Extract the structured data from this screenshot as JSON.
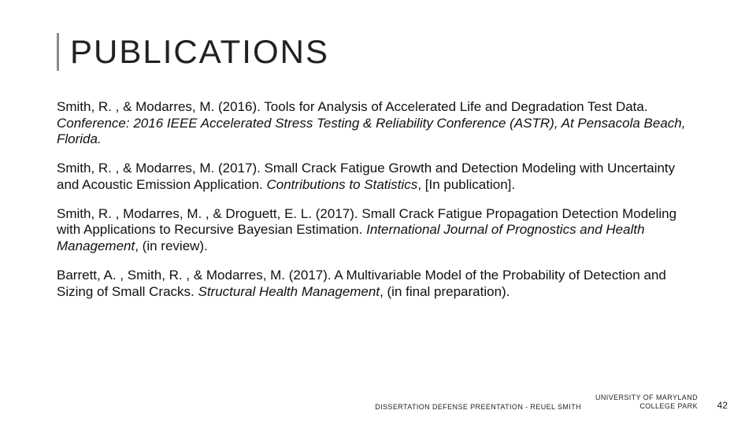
{
  "title": "PUBLICATIONS",
  "title_fontsize": 42,
  "title_letter_spacing": 2,
  "accent_bar_color": "#8b8b8b",
  "background_color": "#ffffff",
  "body_fontsize": 17,
  "body_line_height": 1.22,
  "text_color": "#111111",
  "footer_fontsize": 9,
  "page_number_fontsize": 12,
  "publications": [
    {
      "authors": "Smith, R. , & Modarres, M. (2016).",
      "body": "Tools for Analysis of Accelerated Life and Degradation Test Data.",
      "venue_italic": "Conference: 2016 IEEE Accelerated Stress Testing & Reliability Conference (ASTR), At Pensacola Beach, Florida."
    },
    {
      "authors": "Smith, R. , & Modarres, M. (2017).",
      "body": "Small Crack Fatigue Growth and Detection Modeling with Uncertainty and Acoustic Emission Application.",
      "venue_italic": "Contributions to Statistics",
      "trailing": ", [In publication]."
    },
    {
      "authors": "Smith, R. , Modarres, M. , & Droguett, E. L. (2017).",
      "body": "Small Crack Fatigue Propagation Detection Modeling with Applications to Recursive Bayesian Estimation.",
      "venue_italic": "International Journal of Prognostics and Health Management",
      "trailing": ", (in review)."
    },
    {
      "authors": "Barrett, A. , Smith, R. , & Modarres, M. (2017).",
      "body": "A Multivariable Model of the Probability of Detection and Sizing of Small Cracks. ",
      "venue_italic": "Structural Health Management",
      "trailing": ", (in final preparation)."
    }
  ],
  "footer": {
    "left": "DISSERTATION DEFENSE PREENTATION - REUEL SMITH",
    "right_line1": "UNIVERSITY OF MARYLAND",
    "right_line2": "COLLEGE PARK",
    "page_number": "42"
  }
}
